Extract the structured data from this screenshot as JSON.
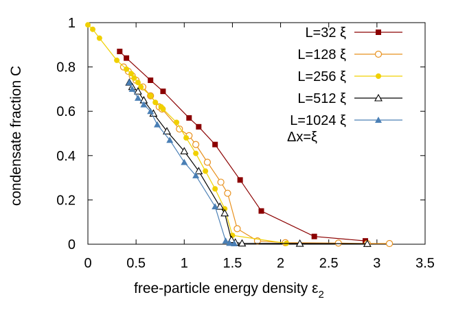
{
  "chart_data": {
    "type": "line",
    "xlabel": "free-particle energy density ε",
    "xlabel_sub": "2",
    "ylabel": "condensate fraction C",
    "xlim": [
      0,
      3.5
    ],
    "ylim": [
      0,
      1
    ],
    "xticks": [
      0,
      0.5,
      1,
      1.5,
      2,
      2.5,
      3,
      3.5
    ],
    "xtick_labels": [
      "0",
      "0.5",
      "1",
      "1.5",
      "2",
      "2.5",
      "3",
      "3.5"
    ],
    "yticks": [
      0,
      0.2,
      0.4,
      0.6,
      0.8,
      1
    ],
    "ytick_labels": [
      "0",
      "0.2",
      "0.4",
      "0.6",
      "0.8",
      "1"
    ],
    "grid": false,
    "legend_position": "top-right",
    "annotation": "Δx=ξ",
    "series": [
      {
        "name": "L=32 ξ",
        "color": "#8b0000",
        "marker": "square-filled",
        "x": [
          0.33,
          0.4,
          0.65,
          0.78,
          1.05,
          1.15,
          1.32,
          1.58,
          1.8,
          2.35,
          2.88
        ],
        "y": [
          0.87,
          0.84,
          0.74,
          0.69,
          0.57,
          0.53,
          0.45,
          0.29,
          0.15,
          0.035,
          0.015
        ]
      },
      {
        "name": "L=128 ξ",
        "color": "#e8901c",
        "marker": "circle-open",
        "x": [
          0.37,
          0.42,
          0.46,
          0.5,
          0.57,
          0.65,
          0.74,
          0.77,
          0.95,
          1.05,
          1.12,
          1.24,
          1.38,
          1.45,
          1.55,
          1.76,
          2.05,
          2.6,
          2.9,
          3.13
        ],
        "y": [
          0.8,
          0.78,
          0.76,
          0.74,
          0.71,
          0.67,
          0.62,
          0.61,
          0.52,
          0.49,
          0.45,
          0.37,
          0.28,
          0.23,
          0.07,
          0.015,
          0.007,
          0.005,
          0.003,
          0.003
        ]
      },
      {
        "name": "L=256 ξ",
        "color": "#f0d000",
        "marker": "circle-filled",
        "x": [
          0.0,
          0.05,
          0.12,
          0.3,
          0.4,
          0.45,
          0.48,
          0.52,
          0.55,
          0.65,
          0.7,
          0.76,
          0.78,
          0.92,
          1.02,
          1.12,
          1.22,
          1.32,
          1.42,
          1.5,
          2.06
        ],
        "y": [
          0.99,
          0.97,
          0.93,
          0.83,
          0.79,
          0.77,
          0.75,
          0.73,
          0.71,
          0.67,
          0.64,
          0.62,
          0.61,
          0.55,
          0.48,
          0.41,
          0.33,
          0.25,
          0.16,
          0.04,
          0.004
        ]
      },
      {
        "name": "L=512 ξ",
        "color": "#000000",
        "marker": "triangle-open",
        "x": [
          0.43,
          0.46,
          0.52,
          0.58,
          0.68,
          0.82,
          1.0,
          1.15,
          1.37,
          1.42,
          1.49,
          1.53,
          1.6,
          2.2,
          2.9
        ],
        "y": [
          0.73,
          0.71,
          0.69,
          0.65,
          0.59,
          0.51,
          0.42,
          0.33,
          0.17,
          0.14,
          0.02,
          0.008,
          0.004,
          0.003,
          0.002
        ]
      },
      {
        "name": "L=1024 ξ",
        "color": "#4a7fb5",
        "marker": "triangle-filled",
        "x": [
          0.43,
          0.46,
          0.52,
          0.58,
          0.65,
          0.72,
          0.85,
          1.0,
          1.12,
          1.32,
          1.43,
          1.47,
          1.52
        ],
        "y": [
          0.73,
          0.7,
          0.66,
          0.63,
          0.6,
          0.54,
          0.47,
          0.37,
          0.31,
          0.17,
          0.015,
          0.005,
          0.003
        ]
      }
    ]
  }
}
